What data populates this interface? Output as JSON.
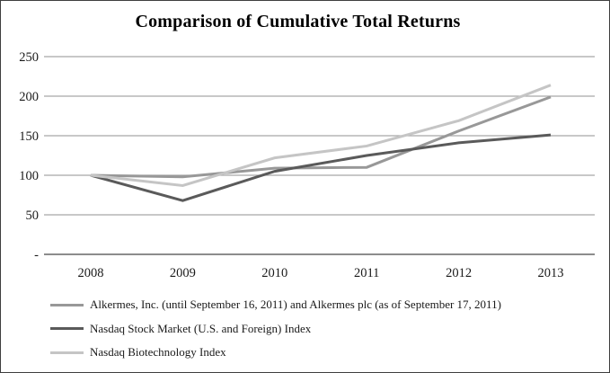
{
  "chart_data": {
    "type": "line",
    "title": "Comparison of Cumulative Total Returns",
    "xlabel": "",
    "ylabel": "",
    "categories": [
      "2008",
      "2009",
      "2010",
      "2011",
      "2012",
      "2013"
    ],
    "y_ticks": [
      250,
      200,
      150,
      100,
      50,
      0
    ],
    "y_tick_labels": [
      "250",
      "200",
      "150",
      "100",
      "50",
      "-"
    ],
    "ylim": [
      0,
      250
    ],
    "grid": "horizontal-only",
    "legend_position": "bottom-left",
    "series": [
      {
        "name": "Alkermes, Inc. (until September 16, 2011) and Alkermes plc (as of September 17, 2011)",
        "values": [
          100,
          98,
          109,
          110,
          156,
          199
        ],
        "color": "#989898"
      },
      {
        "name": "Nasdaq Stock Market (U.S. and Foreign) Index",
        "values": [
          100,
          68,
          105,
          125,
          141,
          151
        ],
        "color": "#5a5a5a"
      },
      {
        "name": "Nasdaq Biotechnology Index",
        "values": [
          100,
          87,
          122,
          137,
          169,
          214
        ],
        "color": "#c5c5c5"
      }
    ],
    "colors": {
      "gridline": "#a8a8a8",
      "axis_line": "#8c8c8c",
      "text": "#1a1a1a",
      "border": "#3f3f3f"
    }
  }
}
